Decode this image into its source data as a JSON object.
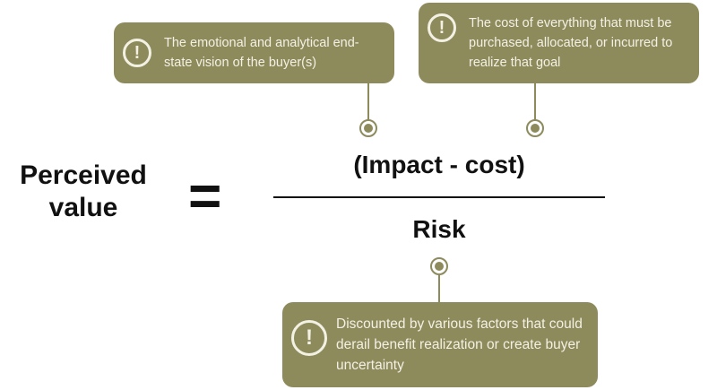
{
  "accent_color": "#8d8a5c",
  "callouts": {
    "impact": {
      "icon": "exclamation-icon",
      "glyph": "!",
      "text": "The emotional and analytical end-state vision of the buyer(s)"
    },
    "cost": {
      "icon": "exclamation-icon",
      "glyph": "!",
      "text": "The cost of everything that must be purchased, allocated, or incurred to realize that goal"
    },
    "risk": {
      "icon": "exclamation-icon",
      "glyph": "!",
      "text": "Discounted by various factors that could derail benefit realization or create buyer uncertainty"
    }
  },
  "formula": {
    "lhs": "Perceived value",
    "equals": "=",
    "numerator": "(Impact - cost)",
    "denominator": "Risk"
  }
}
